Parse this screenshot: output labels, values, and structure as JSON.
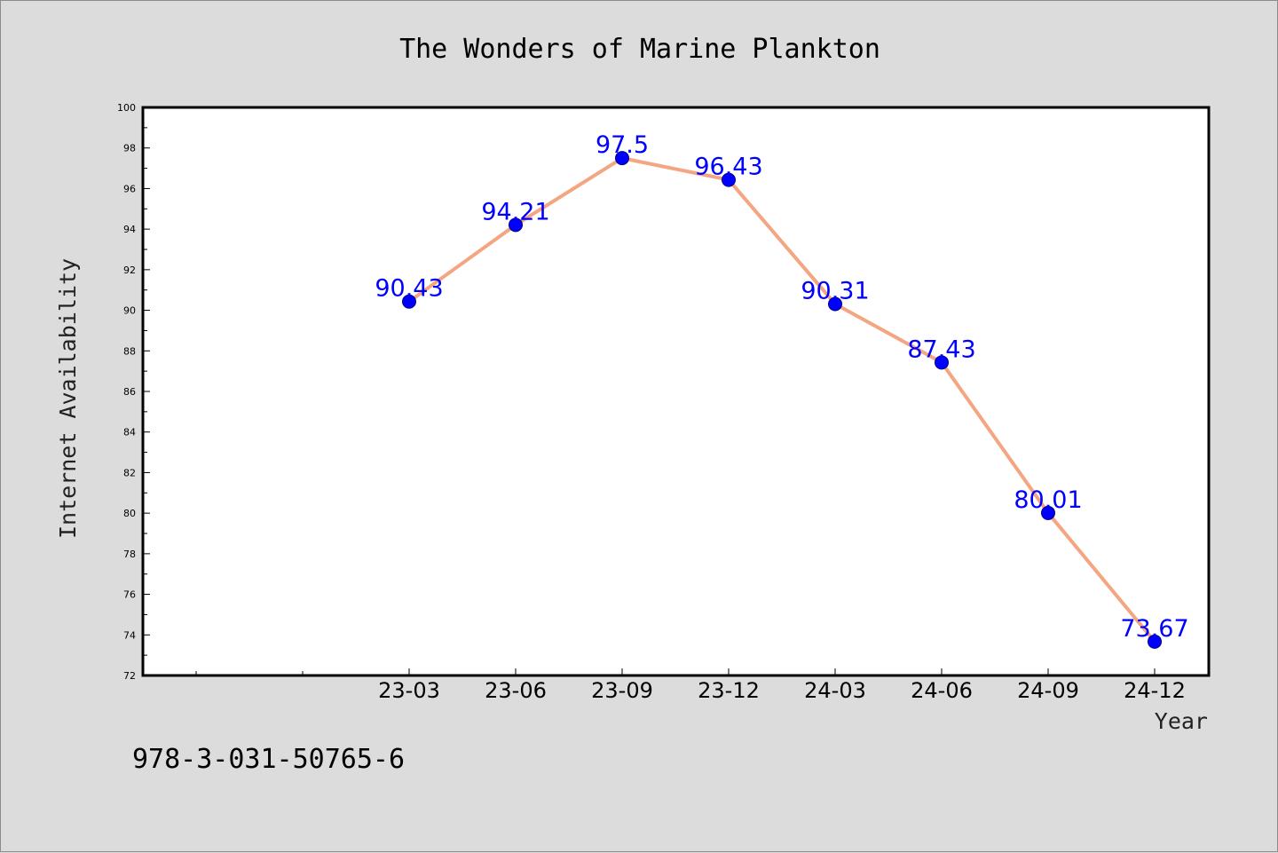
{
  "chart_data": {
    "type": "line",
    "title": "The Wonders of Marine Plankton",
    "xlabel": "Year",
    "ylabel": "Internet Availability",
    "categories": [
      "23-03",
      "23-06",
      "23-09",
      "23-12",
      "24-03",
      "24-06",
      "24-09",
      "24-12"
    ],
    "values": [
      90.43,
      94.21,
      97.5,
      96.43,
      90.31,
      87.43,
      80.01,
      73.67
    ],
    "data_labels": [
      "90.43",
      "94.21",
      "97.5",
      "96.43",
      "90.31",
      "87.43",
      "80.01",
      "73.67"
    ],
    "ylim": [
      72,
      100
    ],
    "ytick_labels": [
      "72",
      "74",
      "76",
      "78",
      "80",
      "82",
      "84",
      "86",
      "88",
      "90",
      "92",
      "94",
      "96",
      "98",
      "100"
    ],
    "grid": false,
    "legend": "none",
    "line_color": "#f4a582",
    "marker_color": "#0000ff",
    "label_color": "#0000ff",
    "plot_background": "#ffffff",
    "figure_background": "#dcdcdc"
  },
  "footer": {
    "isbn": "978-3-031-50765-6"
  }
}
